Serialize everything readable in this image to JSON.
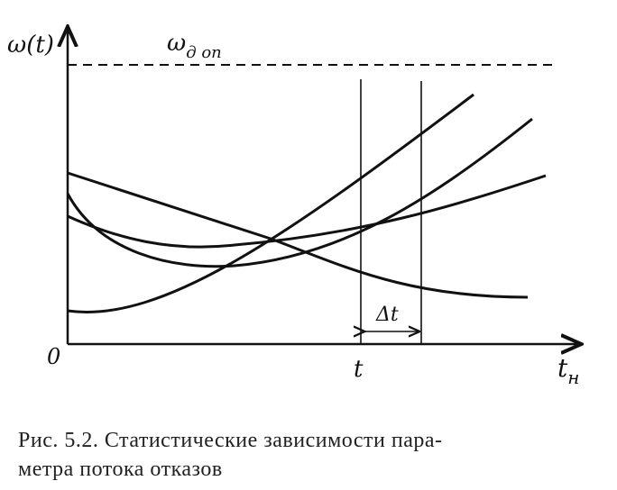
{
  "figure": {
    "y_axis_label": "ω(t)",
    "limit_label": {
      "symbol": "ω",
      "subscript": "д оп"
    },
    "origin_label": "0",
    "t_label": "t",
    "interval_label": "Δt",
    "x_axis_label": {
      "symbol": "t",
      "subscript": "н"
    }
  },
  "caption": {
    "lines": [
      "Рис. 5.2. Статистические зависимости пара-",
      "метра потока отказов"
    ]
  }
}
